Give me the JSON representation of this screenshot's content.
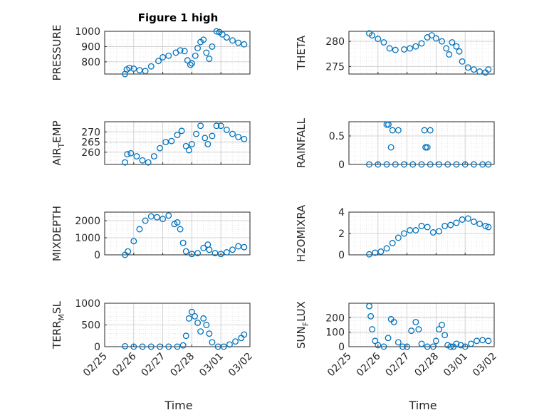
{
  "figure_title": "Figure 1 high",
  "xlabel": "Time",
  "x_tick_labels": [
    "02/25",
    "02/26",
    "02/27",
    "02/28",
    "03/01",
    "03/02"
  ],
  "marker_color": "#0072BD",
  "chart_data": [
    {
      "type": "scatter",
      "name": "PRESSURE",
      "title": "Figure 1 high",
      "ylabel": "PRESSURE",
      "ylim": [
        720,
        1000
      ],
      "yticks": [
        "800",
        "900",
        "1000"
      ],
      "x": [
        0.7,
        0.76,
        0.85,
        1.0,
        1.2,
        1.4,
        1.6,
        1.85,
        2.0,
        2.2,
        2.45,
        2.6,
        2.75,
        2.85,
        2.95,
        3.0,
        3.12,
        3.2,
        3.3,
        3.4,
        3.5,
        3.6,
        3.7,
        3.85,
        3.95,
        4.05,
        4.2,
        4.4,
        4.6,
        4.8
      ],
      "y": [
        720,
        750,
        760,
        755,
        745,
        740,
        770,
        805,
        830,
        840,
        860,
        875,
        870,
        810,
        780,
        790,
        840,
        890,
        930,
        945,
        860,
        820,
        900,
        1000,
        995,
        980,
        960,
        940,
        925,
        915
      ]
    },
    {
      "type": "scatter",
      "name": "THETA",
      "ylabel": "THETA",
      "ylim": [
        273.5,
        282
      ],
      "yticks": [
        "275",
        "280"
      ],
      "x": [
        0.7,
        0.8,
        1.0,
        1.2,
        1.4,
        1.6,
        1.9,
        2.1,
        2.3,
        2.5,
        2.7,
        2.85,
        3.0,
        3.2,
        3.35,
        3.45,
        3.55,
        3.7,
        3.8,
        3.9,
        4.1,
        4.3,
        4.5,
        4.7,
        4.8
      ],
      "y": [
        281.6,
        281.2,
        280.5,
        279.8,
        278.6,
        278.3,
        278.4,
        278.6,
        279.0,
        279.6,
        280.8,
        281.2,
        280.6,
        280.0,
        278.6,
        277.4,
        279.8,
        279.0,
        278.0,
        276.0,
        274.8,
        274.4,
        274.0,
        273.8,
        274.4
      ]
    },
    {
      "type": "scatter",
      "name": "AIR_TEMP",
      "ylabel": "AIR_TEMP",
      "ylim": [
        254,
        275
      ],
      "yticks": [
        "260",
        "265",
        "270"
      ],
      "x": [
        0.7,
        0.78,
        0.9,
        1.1,
        1.3,
        1.5,
        1.7,
        1.9,
        2.1,
        2.3,
        2.5,
        2.65,
        2.8,
        2.9,
        3.0,
        3.15,
        3.3,
        3.45,
        3.55,
        3.7,
        3.85,
        4.0,
        4.2,
        4.4,
        4.6,
        4.8
      ],
      "y": [
        255,
        259,
        259.5,
        258,
        256,
        255,
        258,
        262,
        265,
        265.5,
        268.5,
        270.5,
        263,
        261,
        264,
        269,
        273,
        267,
        264,
        268,
        273,
        273,
        271,
        269,
        267.5,
        266.5
      ]
    },
    {
      "type": "scatter",
      "name": "RAINFALL",
      "ylabel": "RAINFALL",
      "ylim": [
        0,
        0.75
      ],
      "yticks": [
        "0",
        "0.5"
      ],
      "x": [
        0.7,
        1.0,
        1.3,
        1.6,
        1.9,
        2.2,
        2.5,
        2.8,
        3.1,
        3.4,
        3.7,
        4.0,
        4.3,
        4.6,
        4.8,
        1.3,
        1.36,
        1.45,
        1.5,
        1.7,
        2.6,
        2.64,
        2.8,
        2.64,
        2.7
      ],
      "y": [
        0,
        0,
        0,
        0,
        0,
        0,
        0,
        0,
        0,
        0,
        0,
        0,
        0,
        0,
        0,
        0.7,
        0.7,
        0.3,
        0.6,
        0.6,
        0.6,
        0.3,
        0.6,
        0.3,
        0.3
      ]
    },
    {
      "type": "scatter",
      "name": "MIXDEPTH",
      "ylabel": "MIXDEPTH",
      "ylim": [
        0,
        2500
      ],
      "yticks": [
        "0",
        "1000",
        "2000"
      ],
      "x": [
        0.7,
        0.8,
        1.0,
        1.2,
        1.4,
        1.6,
        1.8,
        2.0,
        2.2,
        2.4,
        2.5,
        2.6,
        2.7,
        2.8,
        3.0,
        3.2,
        3.4,
        3.55,
        3.6,
        3.8,
        4.0,
        4.2,
        4.4,
        4.6,
        4.8
      ],
      "y": [
        0,
        200,
        800,
        1500,
        2000,
        2250,
        2200,
        2100,
        2300,
        1800,
        1900,
        1500,
        700,
        200,
        50,
        100,
        400,
        600,
        300,
        100,
        50,
        150,
        300,
        500,
        450
      ]
    },
    {
      "type": "scatter",
      "name": "H2OMIXRA",
      "ylabel": "H2OMIXRA",
      "ylim": [
        0,
        4
      ],
      "yticks": [
        "0",
        "2",
        "4"
      ],
      "x": [
        0.7,
        0.9,
        1.1,
        1.3,
        1.5,
        1.7,
        1.9,
        2.1,
        2.3,
        2.5,
        2.7,
        2.9,
        3.1,
        3.3,
        3.5,
        3.7,
        3.9,
        4.1,
        4.3,
        4.5,
        4.7,
        4.8
      ],
      "y": [
        0.05,
        0.2,
        0.3,
        0.6,
        1.1,
        1.6,
        2.0,
        2.3,
        2.3,
        2.7,
        2.6,
        2.1,
        2.2,
        2.7,
        2.8,
        3.0,
        3.3,
        3.4,
        3.1,
        2.9,
        2.7,
        2.6
      ]
    },
    {
      "type": "scatter",
      "name": "TERR_MSL",
      "ylabel": "TERR_MSL",
      "ylim": [
        0,
        1000
      ],
      "yticks": [
        "0",
        "500",
        "1000"
      ],
      "x": [
        0.7,
        1.0,
        1.3,
        1.6,
        1.9,
        2.2,
        2.5,
        2.7,
        2.8,
        2.9,
        3.0,
        3.1,
        3.2,
        3.3,
        3.4,
        3.5,
        3.6,
        3.7,
        3.9,
        4.1,
        4.3,
        4.5,
        4.7,
        4.8
      ],
      "y": [
        10,
        0,
        0,
        0,
        0,
        0,
        0,
        30,
        250,
        650,
        800,
        700,
        550,
        350,
        650,
        500,
        300,
        100,
        0,
        0,
        50,
        120,
        200,
        280
      ]
    },
    {
      "type": "scatter",
      "name": "SUN_FLUX",
      "ylabel": "SUN_FLUX",
      "ylim": [
        0,
        300
      ],
      "yticks": [
        "0",
        "100",
        "200"
      ],
      "x": [
        0.7,
        0.75,
        0.8,
        0.9,
        1.0,
        1.2,
        1.35,
        1.45,
        1.55,
        1.7,
        1.85,
        2.0,
        2.15,
        2.3,
        2.4,
        2.5,
        2.7,
        2.9,
        3.0,
        3.1,
        3.2,
        3.3,
        3.4,
        3.5,
        3.6,
        3.7,
        3.85,
        4.0,
        4.2,
        4.4,
        4.6,
        4.8
      ],
      "y": [
        280,
        210,
        120,
        40,
        10,
        0,
        60,
        190,
        170,
        30,
        0,
        0,
        110,
        170,
        120,
        20,
        0,
        0,
        40,
        120,
        150,
        80,
        10,
        0,
        0,
        20,
        10,
        0,
        20,
        40,
        45,
        40
      ]
    }
  ]
}
